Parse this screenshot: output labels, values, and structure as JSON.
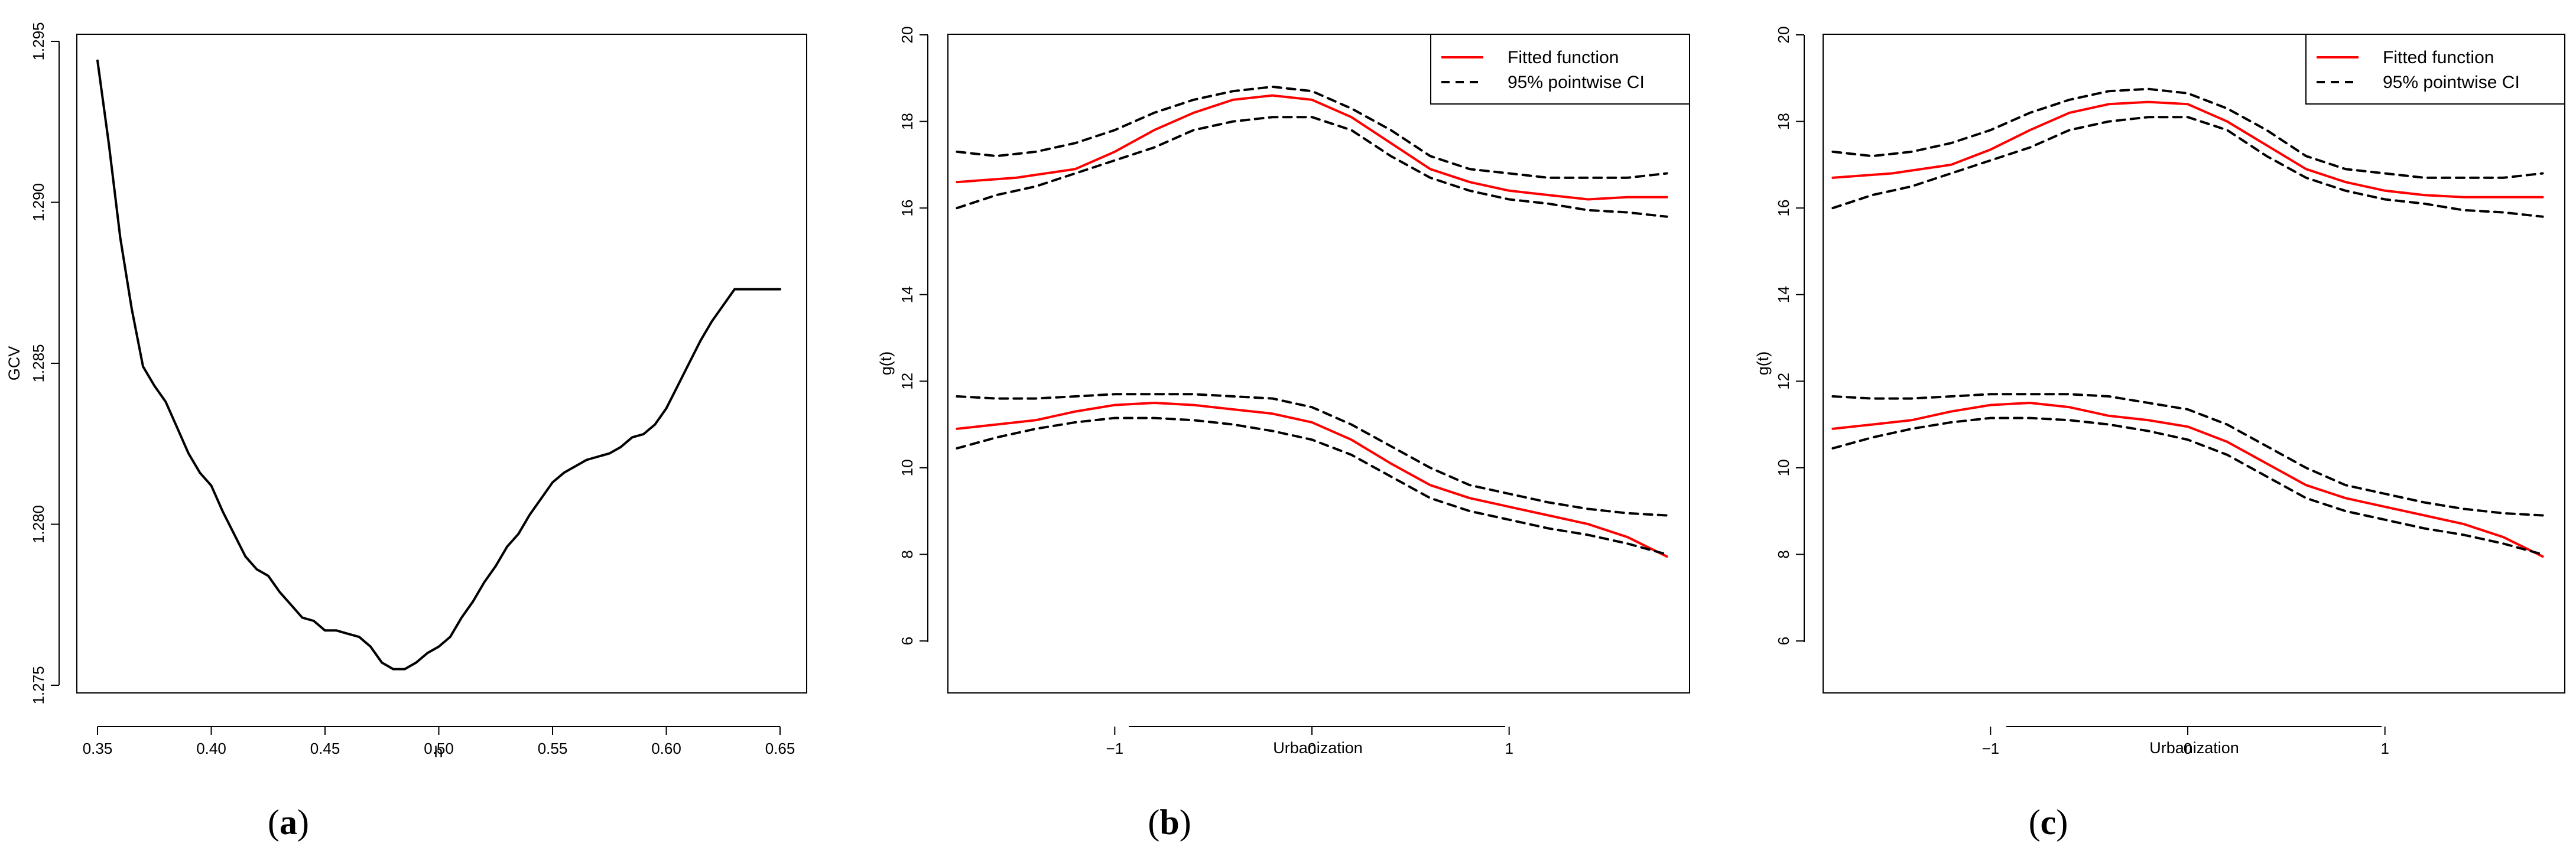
{
  "chart_data": [
    {
      "type": "line",
      "caption": {
        "open": "(",
        "letter": "a",
        "close": ")"
      },
      "xlabel": "h",
      "ylabel": "GCV",
      "xlim": [
        0.35,
        0.65
      ],
      "ylim": [
        1.275,
        1.295
      ],
      "xticks": [
        0.35,
        0.4,
        0.45,
        0.5,
        0.55,
        0.6,
        0.65
      ],
      "xtick_labels": [
        "0.35",
        "0.40",
        "0.45",
        "0.50",
        "0.55",
        "0.60",
        "0.65"
      ],
      "yticks": [
        1.275,
        1.28,
        1.285,
        1.29,
        1.295
      ],
      "ytick_labels": [
        "1.275",
        "1.280",
        "1.285",
        "1.290",
        "1.295"
      ],
      "series": [
        {
          "name": "GCV",
          "color": "#000000",
          "style": "solid",
          "x": [
            0.35,
            0.355,
            0.36,
            0.365,
            0.37,
            0.375,
            0.38,
            0.385,
            0.39,
            0.395,
            0.4,
            0.405,
            0.41,
            0.415,
            0.42,
            0.425,
            0.43,
            0.435,
            0.44,
            0.445,
            0.45,
            0.455,
            0.46,
            0.465,
            0.47,
            0.475,
            0.48,
            0.485,
            0.49,
            0.495,
            0.5,
            0.505,
            0.51,
            0.515,
            0.52,
            0.525,
            0.53,
            0.535,
            0.54,
            0.545,
            0.55,
            0.555,
            0.56,
            0.565,
            0.57,
            0.575,
            0.58,
            0.585,
            0.59,
            0.595,
            0.6,
            0.605,
            0.61,
            0.615,
            0.62,
            0.625,
            0.63,
            0.635,
            0.64,
            0.645,
            0.65
          ],
          "y": [
            1.2944,
            1.2918,
            1.2889,
            1.2867,
            1.2849,
            1.2843,
            1.2838,
            1.283,
            1.2822,
            1.2816,
            1.2812,
            1.2804,
            1.2797,
            1.279,
            1.2786,
            1.2784,
            1.2779,
            1.2775,
            1.2771,
            1.277,
            1.2767,
            1.2767,
            1.2766,
            1.2765,
            1.2762,
            1.2757,
            1.2755,
            1.2755,
            1.2757,
            1.276,
            1.2762,
            1.2765,
            1.2771,
            1.2776,
            1.2782,
            1.2787,
            1.2793,
            1.2797,
            1.2803,
            1.2808,
            1.2813,
            1.2816,
            1.2818,
            1.282,
            1.2821,
            1.2822,
            1.2824,
            1.2827,
            1.2828,
            1.2831,
            1.2836,
            1.2843,
            1.285,
            1.2857,
            1.2863,
            1.2868,
            1.2873,
            1.2873,
            1.2873,
            1.2873,
            1.2873
          ]
        }
      ]
    },
    {
      "type": "line",
      "caption": {
        "open": "(",
        "letter": "b",
        "close": ")"
      },
      "xlabel": "Urbanization",
      "ylabel": "g(t)",
      "xlim": [
        -1.9,
        1.9
      ],
      "ylim": [
        4.8,
        20
      ],
      "xticks": [
        -1,
        0,
        1
      ],
      "xtick_labels": [
        "−1",
        "0",
        "1"
      ],
      "yticks": [
        6,
        8,
        10,
        12,
        14,
        16,
        18,
        20
      ],
      "ytick_labels": [
        "6",
        "8",
        "10",
        "12",
        "14",
        "16",
        "18",
        "20"
      ],
      "legend": {
        "position": "top-right",
        "entries": [
          {
            "label": "Fitted function",
            "color": "#ff0000",
            "style": "solid"
          },
          {
            "label": "95% pointwise CI",
            "color": "#000000",
            "style": "dashed"
          }
        ]
      },
      "series": [
        {
          "name": "Upper curve fitted function",
          "color": "#ff0000",
          "style": "solid",
          "x": [
            -1.8,
            -1.5,
            -1.2,
            -1.0,
            -0.8,
            -0.6,
            -0.4,
            -0.2,
            0.0,
            0.2,
            0.4,
            0.6,
            0.8,
            1.0,
            1.2,
            1.4,
            1.6,
            1.8
          ],
          "y": [
            16.6,
            16.7,
            16.9,
            17.3,
            17.8,
            18.2,
            18.5,
            18.6,
            18.5,
            18.1,
            17.5,
            16.9,
            16.6,
            16.4,
            16.3,
            16.2,
            16.25,
            16.25
          ]
        },
        {
          "name": "Upper curve 95% CI upper",
          "color": "#000000",
          "style": "dashed",
          "x": [
            -1.8,
            -1.6,
            -1.4,
            -1.2,
            -1.0,
            -0.8,
            -0.6,
            -0.4,
            -0.2,
            0.0,
            0.2,
            0.4,
            0.6,
            0.8,
            1.0,
            1.2,
            1.4,
            1.6,
            1.8
          ],
          "y": [
            17.3,
            17.2,
            17.3,
            17.5,
            17.8,
            18.2,
            18.5,
            18.7,
            18.8,
            18.7,
            18.3,
            17.8,
            17.2,
            16.9,
            16.8,
            16.7,
            16.7,
            16.7,
            16.8
          ]
        },
        {
          "name": "Upper curve 95% CI lower",
          "color": "#000000",
          "style": "dashed",
          "x": [
            -1.8,
            -1.6,
            -1.4,
            -1.2,
            -1.0,
            -0.8,
            -0.6,
            -0.4,
            -0.2,
            0.0,
            0.2,
            0.4,
            0.6,
            0.8,
            1.0,
            1.2,
            1.4,
            1.6,
            1.8
          ],
          "y": [
            16.0,
            16.3,
            16.5,
            16.8,
            17.1,
            17.4,
            17.8,
            18.0,
            18.1,
            18.1,
            17.8,
            17.2,
            16.7,
            16.4,
            16.2,
            16.1,
            15.95,
            15.9,
            15.8
          ]
        },
        {
          "name": "Lower curve fitted function",
          "color": "#ff0000",
          "style": "solid",
          "x": [
            -1.8,
            -1.6,
            -1.4,
            -1.2,
            -1.0,
            -0.8,
            -0.6,
            -0.4,
            -0.2,
            0.0,
            0.2,
            0.4,
            0.6,
            0.8,
            1.0,
            1.2,
            1.4,
            1.6,
            1.8
          ],
          "y": [
            10.9,
            11.0,
            11.1,
            11.3,
            11.45,
            11.5,
            11.45,
            11.35,
            11.25,
            11.05,
            10.65,
            10.1,
            9.6,
            9.3,
            9.1,
            8.9,
            8.7,
            8.4,
            7.95
          ]
        },
        {
          "name": "Lower curve 95% CI upper",
          "color": "#000000",
          "style": "dashed",
          "x": [
            -1.8,
            -1.6,
            -1.4,
            -1.2,
            -1.0,
            -0.8,
            -0.6,
            -0.4,
            -0.2,
            0.0,
            0.2,
            0.4,
            0.6,
            0.8,
            1.0,
            1.2,
            1.4,
            1.6,
            1.8
          ],
          "y": [
            11.65,
            11.6,
            11.6,
            11.65,
            11.7,
            11.7,
            11.7,
            11.65,
            11.6,
            11.4,
            11.0,
            10.5,
            10.0,
            9.6,
            9.4,
            9.2,
            9.05,
            8.95,
            8.9
          ]
        },
        {
          "name": "Lower curve 95% CI lower",
          "color": "#000000",
          "style": "dashed",
          "x": [
            -1.8,
            -1.6,
            -1.4,
            -1.2,
            -1.0,
            -0.8,
            -0.6,
            -0.4,
            -0.2,
            0.0,
            0.2,
            0.4,
            0.6,
            0.8,
            1.0,
            1.2,
            1.4,
            1.6,
            1.8
          ],
          "y": [
            10.45,
            10.7,
            10.9,
            11.05,
            11.15,
            11.15,
            11.1,
            11.0,
            10.85,
            10.65,
            10.3,
            9.8,
            9.3,
            9.0,
            8.8,
            8.6,
            8.45,
            8.25,
            8.0
          ]
        }
      ]
    },
    {
      "type": "line",
      "caption": {
        "open": "(",
        "letter": "c",
        "close": ")"
      },
      "xlabel": "Urbanization",
      "ylabel": "g(t)",
      "xlim": [
        -1.9,
        1.9
      ],
      "ylim": [
        4.8,
        20
      ],
      "xticks": [
        -1,
        0,
        1
      ],
      "xtick_labels": [
        "−1",
        "0",
        "1"
      ],
      "yticks": [
        6,
        8,
        10,
        12,
        14,
        16,
        18,
        20
      ],
      "ytick_labels": [
        "6",
        "8",
        "10",
        "12",
        "14",
        "16",
        "18",
        "20"
      ],
      "legend": {
        "position": "top-right",
        "entries": [
          {
            "label": "Fitted function",
            "color": "#ff0000",
            "style": "solid"
          },
          {
            "label": "95% pointwise CI",
            "color": "#000000",
            "style": "dashed"
          }
        ]
      },
      "series": [
        {
          "name": "Upper curve fitted function",
          "color": "#ff0000",
          "style": "solid",
          "x": [
            -1.8,
            -1.5,
            -1.2,
            -1.0,
            -0.8,
            -0.6,
            -0.4,
            -0.2,
            0.0,
            0.2,
            0.4,
            0.6,
            0.8,
            1.0,
            1.2,
            1.4,
            1.6,
            1.8
          ],
          "y": [
            16.7,
            16.8,
            17.0,
            17.35,
            17.8,
            18.2,
            18.4,
            18.45,
            18.4,
            18.0,
            17.45,
            16.9,
            16.6,
            16.4,
            16.3,
            16.25,
            16.25,
            16.25
          ]
        },
        {
          "name": "Upper curve 95% CI upper",
          "color": "#000000",
          "style": "dashed",
          "x": [
            -1.8,
            -1.6,
            -1.4,
            -1.2,
            -1.0,
            -0.8,
            -0.6,
            -0.4,
            -0.2,
            0.0,
            0.2,
            0.4,
            0.6,
            0.8,
            1.0,
            1.2,
            1.4,
            1.6,
            1.8
          ],
          "y": [
            17.3,
            17.2,
            17.3,
            17.5,
            17.8,
            18.2,
            18.5,
            18.7,
            18.75,
            18.65,
            18.3,
            17.8,
            17.2,
            16.9,
            16.8,
            16.7,
            16.7,
            16.7,
            16.8
          ]
        },
        {
          "name": "Upper curve 95% CI lower",
          "color": "#000000",
          "style": "dashed",
          "x": [
            -1.8,
            -1.6,
            -1.4,
            -1.2,
            -1.0,
            -0.8,
            -0.6,
            -0.4,
            -0.2,
            0.0,
            0.2,
            0.4,
            0.6,
            0.8,
            1.0,
            1.2,
            1.4,
            1.6,
            1.8
          ],
          "y": [
            16.0,
            16.3,
            16.5,
            16.8,
            17.1,
            17.4,
            17.8,
            18.0,
            18.1,
            18.1,
            17.8,
            17.2,
            16.7,
            16.4,
            16.2,
            16.1,
            15.95,
            15.9,
            15.8
          ]
        },
        {
          "name": "Lower curve fitted function",
          "color": "#ff0000",
          "style": "solid",
          "x": [
            -1.8,
            -1.6,
            -1.4,
            -1.2,
            -1.0,
            -0.8,
            -0.6,
            -0.4,
            -0.2,
            0.0,
            0.2,
            0.4,
            0.6,
            0.8,
            1.0,
            1.2,
            1.4,
            1.6,
            1.8
          ],
          "y": [
            10.9,
            11.0,
            11.1,
            11.3,
            11.45,
            11.5,
            11.4,
            11.2,
            11.1,
            10.95,
            10.6,
            10.1,
            9.6,
            9.3,
            9.1,
            8.9,
            8.7,
            8.4,
            7.95
          ]
        },
        {
          "name": "Lower curve 95% CI upper",
          "color": "#000000",
          "style": "dashed",
          "x": [
            -1.8,
            -1.6,
            -1.4,
            -1.2,
            -1.0,
            -0.8,
            -0.6,
            -0.4,
            -0.2,
            0.0,
            0.2,
            0.4,
            0.6,
            0.8,
            1.0,
            1.2,
            1.4,
            1.6,
            1.8
          ],
          "y": [
            11.65,
            11.6,
            11.6,
            11.65,
            11.7,
            11.7,
            11.7,
            11.65,
            11.5,
            11.35,
            11.0,
            10.5,
            10.0,
            9.6,
            9.4,
            9.2,
            9.05,
            8.95,
            8.9
          ]
        },
        {
          "name": "Lower curve 95% CI lower",
          "color": "#000000",
          "style": "dashed",
          "x": [
            -1.8,
            -1.6,
            -1.4,
            -1.2,
            -1.0,
            -0.8,
            -0.6,
            -0.4,
            -0.2,
            0.0,
            0.2,
            0.4,
            0.6,
            0.8,
            1.0,
            1.2,
            1.4,
            1.6,
            1.8
          ],
          "y": [
            10.45,
            10.7,
            10.9,
            11.05,
            11.15,
            11.15,
            11.1,
            11.0,
            10.85,
            10.65,
            10.3,
            9.8,
            9.3,
            9.0,
            8.8,
            8.6,
            8.45,
            8.25,
            8.0
          ]
        }
      ]
    }
  ]
}
